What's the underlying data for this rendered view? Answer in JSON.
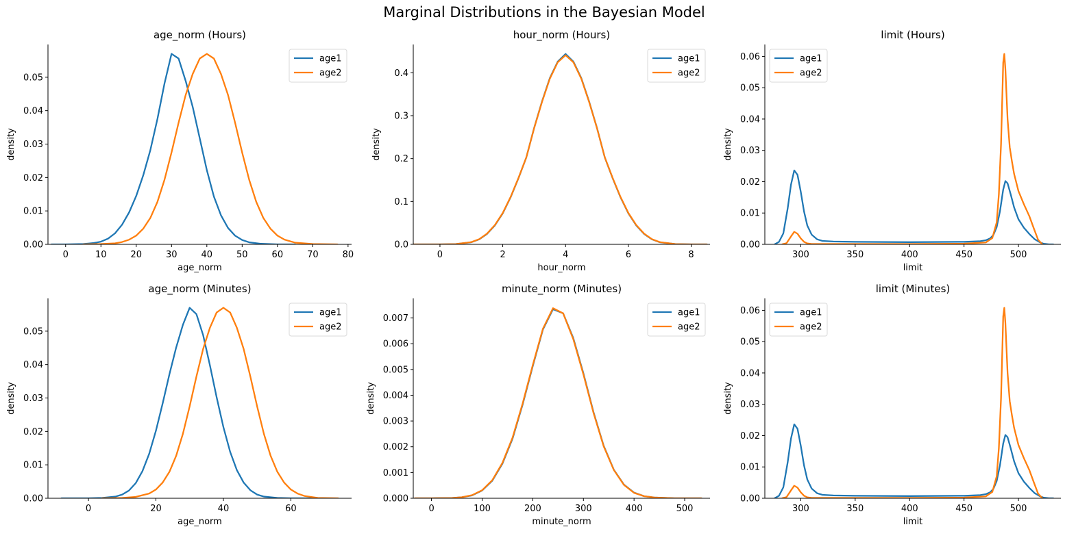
{
  "figure": {
    "title": "Marginal Distributions in the Bayesian Model",
    "colors": {
      "age1": "#1f77b4",
      "age2": "#ff7f0e"
    }
  },
  "chart_data": [
    {
      "type": "line",
      "title": "age_norm (Hours)",
      "xlabel": "age_norm",
      "ylabel": "density",
      "xlim": [
        -5,
        81
      ],
      "ylim": [
        0,
        0.0598
      ],
      "xticks": [
        0,
        10,
        20,
        30,
        40,
        50,
        60,
        70,
        80
      ],
      "yticks": [
        0.0,
        0.01,
        0.02,
        0.03,
        0.04,
        0.05
      ],
      "ytick_labels": [
        "0.00",
        "0.01",
        "0.02",
        "0.03",
        "0.04",
        "0.05"
      ],
      "legend": {
        "position": "upper-right",
        "entries": [
          "age1",
          "age2"
        ]
      },
      "series": [
        {
          "name": "age1",
          "x": [
            -4,
            0,
            5,
            8,
            10,
            12,
            14,
            16,
            18,
            20,
            22,
            24,
            26,
            28,
            30,
            32,
            34,
            36,
            38,
            40,
            42,
            44,
            46,
            48,
            50,
            52,
            55,
            60,
            65
          ],
          "y": [
            0,
            0,
            0.0001,
            0.0004,
            0.0008,
            0.0017,
            0.0033,
            0.0059,
            0.0096,
            0.0145,
            0.0207,
            0.0282,
            0.0375,
            0.0481,
            0.057,
            0.0556,
            0.0489,
            0.0411,
            0.0317,
            0.0222,
            0.0143,
            0.0087,
            0.0049,
            0.0026,
            0.0013,
            0.0006,
            0.0002,
            0,
            0
          ]
        },
        {
          "name": "age2",
          "x": [
            5,
            10,
            14,
            16,
            18,
            20,
            22,
            24,
            26,
            28,
            30,
            32,
            34,
            36,
            38,
            40,
            42,
            44,
            46,
            48,
            50,
            52,
            54,
            56,
            58,
            60,
            62,
            65,
            70,
            77
          ],
          "y": [
            0,
            0.0001,
            0.0003,
            0.0007,
            0.0014,
            0.0026,
            0.0047,
            0.0079,
            0.0127,
            0.0193,
            0.0275,
            0.0364,
            0.0447,
            0.051,
            0.0556,
            0.057,
            0.0556,
            0.051,
            0.0447,
            0.0364,
            0.0275,
            0.0193,
            0.0127,
            0.0079,
            0.0047,
            0.0026,
            0.0014,
            0.0005,
            0.0001,
            0
          ]
        }
      ]
    },
    {
      "type": "line",
      "title": "hour_norm (Hours)",
      "xlabel": "hour_norm",
      "ylabel": "density",
      "xlim": [
        -0.85,
        8.6
      ],
      "ylim": [
        0,
        0.466
      ],
      "xticks": [
        0,
        2,
        4,
        6,
        8
      ],
      "yticks": [
        0.0,
        0.1,
        0.2,
        0.3,
        0.4
      ],
      "ytick_labels": [
        "0.0",
        "0.1",
        "0.2",
        "0.3",
        "0.4"
      ],
      "legend": {
        "position": "upper-right",
        "entries": [
          "age1",
          "age2"
        ]
      },
      "series": [
        {
          "name": "age1",
          "x": [
            -0.85,
            0,
            0.5,
            1,
            1.25,
            1.5,
            1.75,
            2,
            2.25,
            2.5,
            2.75,
            3,
            3.25,
            3.5,
            3.75,
            4,
            4.25,
            4.5,
            4.75,
            5,
            5.25,
            5.5,
            5.75,
            6,
            6.25,
            6.5,
            6.75,
            7,
            7.5,
            8,
            8.5
          ],
          "y": [
            0,
            0,
            0.0005,
            0.0049,
            0.0116,
            0.0243,
            0.0442,
            0.0722,
            0.1097,
            0.1541,
            0.2025,
            0.2716,
            0.3332,
            0.3879,
            0.426,
            0.444,
            0.426,
            0.3879,
            0.3332,
            0.2716,
            0.2025,
            0.1541,
            0.1097,
            0.0722,
            0.0442,
            0.0243,
            0.0116,
            0.0049,
            0.0005,
            0,
            0
          ]
        },
        {
          "name": "age2",
          "x": [
            -0.85,
            0,
            0.5,
            1,
            1.25,
            1.5,
            1.75,
            2,
            2.25,
            2.5,
            2.75,
            3,
            3.25,
            3.5,
            3.75,
            4,
            4.25,
            4.5,
            4.75,
            5,
            5.25,
            5.5,
            5.75,
            6,
            6.25,
            6.5,
            6.75,
            7,
            7.5,
            8,
            8.5
          ],
          "y": [
            0,
            0,
            0.0006,
            0.0052,
            0.0121,
            0.025,
            0.0451,
            0.0731,
            0.1105,
            0.1547,
            0.2027,
            0.2711,
            0.3321,
            0.3865,
            0.4245,
            0.441,
            0.4245,
            0.3865,
            0.3321,
            0.2711,
            0.2027,
            0.1547,
            0.1105,
            0.0731,
            0.0451,
            0.025,
            0.0121,
            0.0052,
            0.0006,
            0,
            0
          ]
        }
      ]
    },
    {
      "type": "line",
      "title": "limit (Hours)",
      "xlabel": "limit",
      "ylabel": "density",
      "xlim": [
        267,
        539
      ],
      "ylim": [
        0,
        0.0638
      ],
      "xticks": [
        300,
        350,
        400,
        450,
        500
      ],
      "yticks": [
        0.0,
        0.01,
        0.02,
        0.03,
        0.04,
        0.05,
        0.06
      ],
      "ytick_labels": [
        "0.00",
        "0.01",
        "0.02",
        "0.03",
        "0.04",
        "0.05",
        "0.06"
      ],
      "legend": {
        "position": "upper-left",
        "entries": [
          "age1",
          "age2"
        ]
      },
      "series": [
        {
          "name": "age1",
          "x": [
            276,
            280,
            284,
            288,
            291,
            294,
            297,
            300,
            303,
            306,
            310,
            315,
            320,
            330,
            350,
            400,
            450,
            465,
            470,
            474,
            477,
            480,
            483,
            486,
            488,
            490,
            493,
            496,
            500,
            505,
            510,
            515,
            520,
            523,
            528,
            532
          ],
          "y": [
            0,
            0.0008,
            0.0035,
            0.0115,
            0.019,
            0.0236,
            0.0222,
            0.0168,
            0.0105,
            0.006,
            0.0031,
            0.0016,
            0.0011,
            0.0009,
            0.0008,
            0.0007,
            0.0008,
            0.001,
            0.0013,
            0.0019,
            0.003,
            0.0055,
            0.0105,
            0.0175,
            0.0202,
            0.0195,
            0.0158,
            0.0118,
            0.008,
            0.0053,
            0.0033,
            0.0016,
            0.0006,
            0.0002,
            0,
            0
          ]
        },
        {
          "name": "age2",
          "x": [
            283,
            287,
            291,
            294,
            297,
            300,
            303,
            306,
            310,
            320,
            350,
            400,
            450,
            470,
            476,
            480,
            482,
            484,
            485,
            486,
            487,
            488,
            489,
            490,
            492,
            494,
            496,
            500,
            505,
            510,
            514,
            518,
            522
          ],
          "y": [
            0,
            0.0004,
            0.0025,
            0.004,
            0.0034,
            0.0019,
            0.0008,
            0.0003,
            0.0001,
            0.0001,
            0.0001,
            0.0001,
            0.0002,
            0.0006,
            0.002,
            0.007,
            0.016,
            0.032,
            0.045,
            0.058,
            0.0608,
            0.056,
            0.048,
            0.04,
            0.031,
            0.0265,
            0.0225,
            0.017,
            0.0128,
            0.009,
            0.0052,
            0.0015,
            0
          ]
        }
      ]
    },
    {
      "type": "line",
      "title": "age_norm (Minutes)",
      "xlabel": "age_norm",
      "ylabel": "density",
      "xlim": [
        -12,
        78
      ],
      "ylim": [
        0,
        0.0598
      ],
      "xticks": [
        0,
        20,
        40,
        60
      ],
      "yticks": [
        0.0,
        0.01,
        0.02,
        0.03,
        0.04,
        0.05
      ],
      "ytick_labels": [
        "0.00",
        "0.01",
        "0.02",
        "0.03",
        "0.04",
        "0.05"
      ],
      "legend": {
        "position": "upper-right",
        "entries": [
          "age1",
          "age2"
        ]
      },
      "series": [
        {
          "name": "age1",
          "x": [
            -8,
            0,
            4,
            8,
            10,
            12,
            14,
            16,
            18,
            20,
            22,
            24,
            26,
            28,
            30,
            32,
            34,
            36,
            38,
            40,
            42,
            44,
            46,
            48,
            50,
            52,
            56,
            60,
            66
          ],
          "y": [
            0,
            0,
            0.0001,
            0.0005,
            0.0011,
            0.0023,
            0.0045,
            0.0081,
            0.0133,
            0.0202,
            0.0284,
            0.0371,
            0.0451,
            0.0519,
            0.057,
            0.0551,
            0.0488,
            0.0398,
            0.0302,
            0.0213,
            0.0139,
            0.0084,
            0.0047,
            0.0024,
            0.0011,
            0.0005,
            0.0001,
            0,
            0
          ]
        },
        {
          "name": "age2",
          "x": [
            4,
            10,
            14,
            18,
            20,
            22,
            24,
            26,
            28,
            30,
            32,
            34,
            36,
            38,
            40,
            42,
            44,
            46,
            48,
            50,
            52,
            54,
            56,
            58,
            60,
            62,
            64,
            68,
            74
          ],
          "y": [
            0,
            0.0001,
            0.0004,
            0.0014,
            0.0026,
            0.0047,
            0.0079,
            0.0127,
            0.0193,
            0.0275,
            0.0364,
            0.0447,
            0.051,
            0.0556,
            0.057,
            0.0556,
            0.051,
            0.0447,
            0.0364,
            0.0275,
            0.0193,
            0.0127,
            0.0079,
            0.0047,
            0.0026,
            0.0014,
            0.0007,
            0.0001,
            0
          ]
        }
      ]
    },
    {
      "type": "line",
      "title": "minute_norm (Minutes)",
      "xlabel": "minute_norm",
      "ylabel": "density",
      "xlim": [
        -36,
        550
      ],
      "ylim": [
        0,
        0.00776
      ],
      "xticks": [
        0,
        100,
        200,
        300,
        400,
        500
      ],
      "yticks": [
        0.0,
        0.001,
        0.002,
        0.003,
        0.004,
        0.005,
        0.006,
        0.007
      ],
      "ytick_labels": [
        "0.000",
        "0.001",
        "0.002",
        "0.003",
        "0.004",
        "0.005",
        "0.006",
        "0.007"
      ],
      "legend": {
        "position": "upper-right",
        "entries": [
          "age1",
          "age2"
        ]
      },
      "series": [
        {
          "name": "age1",
          "x": [
            -33,
            0,
            40,
            60,
            80,
            100,
            120,
            140,
            160,
            180,
            200,
            220,
            240,
            260,
            280,
            300,
            320,
            340,
            360,
            380,
            400,
            420,
            440,
            480,
            533
          ],
          "y": [
            0,
            0,
            1e-05,
            4e-05,
            0.00011,
            0.0003,
            0.00068,
            0.00134,
            0.00231,
            0.00364,
            0.00513,
            0.00655,
            0.00734,
            0.00718,
            0.00622,
            0.00485,
            0.00334,
            0.00204,
            0.00111,
            0.00053,
            0.00022,
            8e-05,
            3e-05,
            0,
            0
          ]
        },
        {
          "name": "age2",
          "x": [
            -33,
            0,
            40,
            60,
            80,
            100,
            120,
            140,
            160,
            180,
            200,
            220,
            240,
            260,
            280,
            300,
            320,
            340,
            360,
            380,
            400,
            420,
            440,
            480,
            533
          ],
          "y": [
            0,
            0,
            1e-05,
            4e-05,
            0.00012,
            0.00031,
            0.0007,
            0.00137,
            0.00235,
            0.00368,
            0.00517,
            0.00658,
            0.00738,
            0.00718,
            0.00618,
            0.00481,
            0.00331,
            0.00202,
            0.0011,
            0.00052,
            0.00021,
            8e-05,
            3e-05,
            0,
            0
          ]
        }
      ]
    },
    {
      "type": "line",
      "title": "limit (Minutes)",
      "xlabel": "limit",
      "ylabel": "density",
      "xlim": [
        267,
        539
      ],
      "ylim": [
        0,
        0.0638
      ],
      "xticks": [
        300,
        350,
        400,
        450,
        500
      ],
      "yticks": [
        0.0,
        0.01,
        0.02,
        0.03,
        0.04,
        0.05,
        0.06
      ],
      "ytick_labels": [
        "0.00",
        "0.01",
        "0.02",
        "0.03",
        "0.04",
        "0.05",
        "0.06"
      ],
      "legend": {
        "position": "upper-left",
        "entries": [
          "age1",
          "age2"
        ]
      },
      "series": [
        {
          "name": "age1",
          "x": [
            276,
            280,
            284,
            288,
            291,
            294,
            297,
            300,
            303,
            306,
            310,
            315,
            320,
            330,
            350,
            400,
            450,
            465,
            470,
            474,
            477,
            480,
            483,
            486,
            488,
            490,
            493,
            496,
            500,
            505,
            510,
            515,
            520,
            523,
            528,
            532
          ],
          "y": [
            0,
            0.0008,
            0.0035,
            0.0115,
            0.019,
            0.0236,
            0.0222,
            0.0168,
            0.0105,
            0.006,
            0.0031,
            0.0016,
            0.0011,
            0.0009,
            0.0008,
            0.0007,
            0.0008,
            0.001,
            0.0013,
            0.0019,
            0.003,
            0.0055,
            0.0105,
            0.0175,
            0.0202,
            0.0195,
            0.0158,
            0.0118,
            0.008,
            0.0053,
            0.0033,
            0.0016,
            0.0006,
            0.0002,
            0,
            0
          ]
        },
        {
          "name": "age2",
          "x": [
            283,
            287,
            291,
            294,
            297,
            300,
            303,
            306,
            310,
            320,
            350,
            400,
            450,
            470,
            476,
            480,
            482,
            484,
            485,
            486,
            487,
            488,
            489,
            490,
            492,
            494,
            496,
            500,
            505,
            510,
            514,
            518,
            522
          ],
          "y": [
            0,
            0.0004,
            0.0025,
            0.004,
            0.0034,
            0.0019,
            0.0008,
            0.0003,
            0.0001,
            0.0001,
            0.0001,
            0.0001,
            0.0002,
            0.0006,
            0.002,
            0.007,
            0.016,
            0.032,
            0.045,
            0.058,
            0.0608,
            0.056,
            0.048,
            0.04,
            0.031,
            0.0265,
            0.0225,
            0.017,
            0.0128,
            0.009,
            0.0052,
            0.0015,
            0
          ]
        }
      ]
    }
  ]
}
